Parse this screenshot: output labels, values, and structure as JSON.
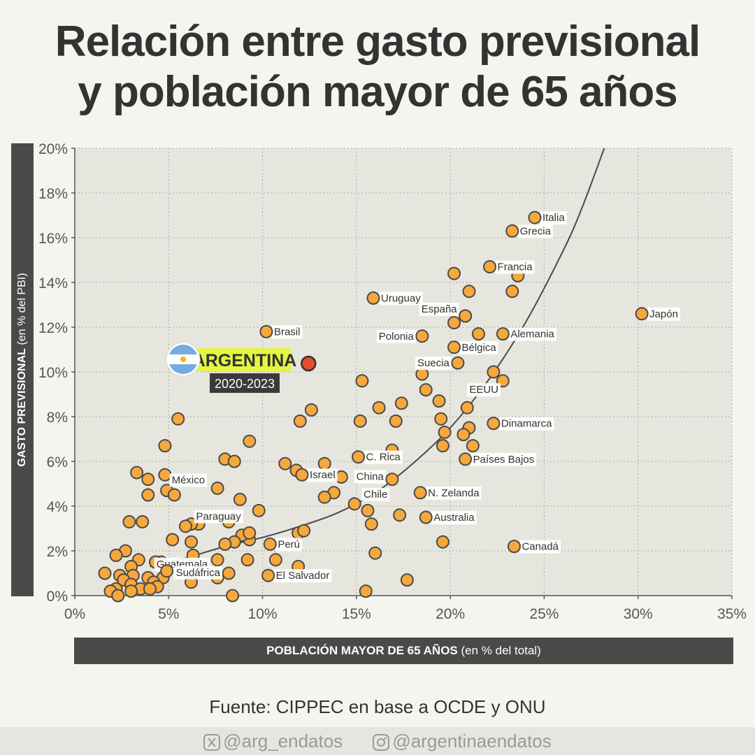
{
  "title": {
    "line1": "Relación entre gasto previsional",
    "line2": "y población mayor de 65 años"
  },
  "axis": {
    "y_label_bold": "GASTO PREVISIONAL",
    "y_label_rest": " (en % del PBI)",
    "x_label_bold": "POBLACIÓN MAYOR DE 65 AÑOS",
    "x_label_rest": " (en % del total)"
  },
  "source": "Fuente: CIPPEC en base a OCDE y ONU",
  "footer": {
    "twitter": "@arg_endatos",
    "instagram": "@argentinaendatos",
    "twitter_icon": "x-icon",
    "instagram_icon": "instagram-icon"
  },
  "highlight": {
    "name": "ARGENTINA",
    "period": "2020-2023",
    "flag_icon": "argentina-flag-icon"
  },
  "chart_data": {
    "type": "scatter",
    "xlim": [
      0,
      35
    ],
    "ylim": [
      0,
      20
    ],
    "x_ticks": [
      0,
      5,
      10,
      15,
      20,
      25,
      30,
      35
    ],
    "y_ticks": [
      0,
      2,
      4,
      6,
      8,
      10,
      12,
      14,
      16,
      18,
      20
    ],
    "x_tick_labels": [
      "0%",
      "5%",
      "10%",
      "15%",
      "20%",
      "25%",
      "30%",
      "35%"
    ],
    "y_tick_labels": [
      "0%",
      "2%",
      "4%",
      "6%",
      "8%",
      "10%",
      "12%",
      "14%",
      "16%",
      "18%",
      "20%"
    ],
    "grid": true,
    "colors": {
      "point": "#f6a83c",
      "point_stroke": "#4a4a4a",
      "highlight": "#e84a2a",
      "highlight_bg": "#e4f542",
      "trend": "#4a4a4a"
    },
    "trendline": {
      "x": [
        4,
        6,
        8,
        10,
        12,
        14,
        16,
        18,
        20,
        22,
        24,
        26,
        27,
        28.2
      ],
      "y": [
        1.3,
        1.7,
        2.2,
        2.6,
        3.1,
        3.7,
        4.6,
        5.9,
        7.5,
        9.6,
        12.2,
        15.4,
        17.3,
        20
      ]
    },
    "highlight_point": {
      "x": 12.0,
      "y": 10.5
    },
    "labeled_points": [
      {
        "name": "Italia",
        "x": 24.5,
        "y": 16.9
      },
      {
        "name": "Grecia",
        "x": 23.3,
        "y": 16.3
      },
      {
        "name": "Francia",
        "x": 22.1,
        "y": 14.7
      },
      {
        "name": "Uruguay",
        "x": 15.9,
        "y": 13.3
      },
      {
        "name": "España",
        "x": 20.8,
        "y": 12.5
      },
      {
        "name": "Japón",
        "x": 30.2,
        "y": 12.6
      },
      {
        "name": "Brasil",
        "x": 10.2,
        "y": 11.8
      },
      {
        "name": "Polonia",
        "x": 18.5,
        "y": 11.6
      },
      {
        "name": "Alemania",
        "x": 22.8,
        "y": 11.7
      },
      {
        "name": "Bélgica",
        "x": 20.2,
        "y": 11.1
      },
      {
        "name": "Suecia",
        "x": 20.4,
        "y": 10.4
      },
      {
        "name": "EEUU",
        "x": 20.9,
        "y": 8.4
      },
      {
        "name": "Dinamarca",
        "x": 22.3,
        "y": 7.7
      },
      {
        "name": "C. Rica",
        "x": 15.1,
        "y": 6.2
      },
      {
        "name": "Países Bajos",
        "x": 20.8,
        "y": 6.1
      },
      {
        "name": "México",
        "x": 7.6,
        "y": 4.8
      },
      {
        "name": "Israel",
        "x": 12.1,
        "y": 5.4
      },
      {
        "name": "China",
        "x": 16.9,
        "y": 5.2
      },
      {
        "name": "N. Zelanda",
        "x": 18.4,
        "y": 4.6
      },
      {
        "name": "Chile",
        "x": 14.9,
        "y": 4.1
      },
      {
        "name": "Australia",
        "x": 18.7,
        "y": 3.5
      },
      {
        "name": "Paraguay",
        "x": 9.3,
        "y": 2.8
      },
      {
        "name": "Perú",
        "x": 10.4,
        "y": 2.3
      },
      {
        "name": "Canadá",
        "x": 23.4,
        "y": 2.2
      },
      {
        "name": "Guatemala",
        "x": 7.6,
        "y": 1.6
      },
      {
        "name": "Sudáfrica",
        "x": 4.9,
        "y": 1.1
      },
      {
        "name": "El Salvador",
        "x": 10.3,
        "y": 0.9
      }
    ],
    "points": [
      {
        "x": 20.2,
        "y": 14.4
      },
      {
        "x": 21.0,
        "y": 13.6
      },
      {
        "x": 23.3,
        "y": 13.6
      },
      {
        "x": 23.6,
        "y": 14.3
      },
      {
        "x": 20.8,
        "y": 12.5
      },
      {
        "x": 20.2,
        "y": 12.2
      },
      {
        "x": 21.5,
        "y": 11.7
      },
      {
        "x": 22.3,
        "y": 10.0
      },
      {
        "x": 22.8,
        "y": 9.6
      },
      {
        "x": 18.5,
        "y": 9.9
      },
      {
        "x": 18.7,
        "y": 9.2
      },
      {
        "x": 15.3,
        "y": 9.6
      },
      {
        "x": 19.4,
        "y": 8.7
      },
      {
        "x": 17.4,
        "y": 8.6
      },
      {
        "x": 16.2,
        "y": 8.4
      },
      {
        "x": 12.6,
        "y": 8.3
      },
      {
        "x": 12.0,
        "y": 7.8
      },
      {
        "x": 15.2,
        "y": 7.8
      },
      {
        "x": 17.1,
        "y": 7.8
      },
      {
        "x": 19.5,
        "y": 7.9
      },
      {
        "x": 21.0,
        "y": 7.5
      },
      {
        "x": 19.7,
        "y": 7.3
      },
      {
        "x": 20.7,
        "y": 7.2
      },
      {
        "x": 21.2,
        "y": 6.7
      },
      {
        "x": 19.6,
        "y": 6.7
      },
      {
        "x": 16.9,
        "y": 6.5
      },
      {
        "x": 5.5,
        "y": 7.9
      },
      {
        "x": 4.8,
        "y": 6.7
      },
      {
        "x": 9.3,
        "y": 6.9
      },
      {
        "x": 8.0,
        "y": 6.1
      },
      {
        "x": 8.5,
        "y": 6.0
      },
      {
        "x": 11.2,
        "y": 5.9
      },
      {
        "x": 13.3,
        "y": 5.9
      },
      {
        "x": 11.8,
        "y": 5.6
      },
      {
        "x": 14.2,
        "y": 5.3
      },
      {
        "x": 13.8,
        "y": 4.6
      },
      {
        "x": 13.3,
        "y": 4.4
      },
      {
        "x": 3.3,
        "y": 5.5
      },
      {
        "x": 4.8,
        "y": 5.4
      },
      {
        "x": 3.9,
        "y": 5.2
      },
      {
        "x": 4.9,
        "y": 4.7
      },
      {
        "x": 5.3,
        "y": 4.5
      },
      {
        "x": 3.9,
        "y": 4.5
      },
      {
        "x": 8.8,
        "y": 4.3
      },
      {
        "x": 9.8,
        "y": 3.8
      },
      {
        "x": 15.6,
        "y": 3.8
      },
      {
        "x": 15.8,
        "y": 3.2
      },
      {
        "x": 17.3,
        "y": 3.6
      },
      {
        "x": 2.9,
        "y": 3.3
      },
      {
        "x": 3.6,
        "y": 3.3
      },
      {
        "x": 8.2,
        "y": 3.3
      },
      {
        "x": 6.6,
        "y": 3.2
      },
      {
        "x": 6.2,
        "y": 3.2
      },
      {
        "x": 5.9,
        "y": 3.1
      },
      {
        "x": 11.9,
        "y": 2.8
      },
      {
        "x": 12.2,
        "y": 2.9
      },
      {
        "x": 9.3,
        "y": 2.5
      },
      {
        "x": 8.9,
        "y": 2.7
      },
      {
        "x": 8.5,
        "y": 2.4
      },
      {
        "x": 8.0,
        "y": 2.3
      },
      {
        "x": 5.2,
        "y": 2.5
      },
      {
        "x": 6.2,
        "y": 2.4
      },
      {
        "x": 19.6,
        "y": 2.4
      },
      {
        "x": 2.7,
        "y": 2.0
      },
      {
        "x": 2.2,
        "y": 1.8
      },
      {
        "x": 3.4,
        "y": 1.6
      },
      {
        "x": 4.6,
        "y": 1.5
      },
      {
        "x": 4.3,
        "y": 1.5
      },
      {
        "x": 6.3,
        "y": 1.8
      },
      {
        "x": 9.2,
        "y": 1.6
      },
      {
        "x": 10.7,
        "y": 1.6
      },
      {
        "x": 11.9,
        "y": 1.3
      },
      {
        "x": 16.0,
        "y": 1.9
      },
      {
        "x": 3.0,
        "y": 1.3
      },
      {
        "x": 1.6,
        "y": 1.0
      },
      {
        "x": 2.4,
        "y": 0.9
      },
      {
        "x": 3.1,
        "y": 0.9
      },
      {
        "x": 3.9,
        "y": 0.8
      },
      {
        "x": 4.7,
        "y": 0.8
      },
      {
        "x": 2.6,
        "y": 0.7
      },
      {
        "x": 4.2,
        "y": 0.6
      },
      {
        "x": 3.0,
        "y": 0.5
      },
      {
        "x": 4.4,
        "y": 0.4
      },
      {
        "x": 2.2,
        "y": 0.3
      },
      {
        "x": 3.5,
        "y": 0.3
      },
      {
        "x": 4.0,
        "y": 0.3
      },
      {
        "x": 1.9,
        "y": 0.2
      },
      {
        "x": 3.0,
        "y": 0.2
      },
      {
        "x": 6.2,
        "y": 0.6
      },
      {
        "x": 7.6,
        "y": 0.8
      },
      {
        "x": 8.2,
        "y": 1.0
      },
      {
        "x": 2.3,
        "y": 0.0
      },
      {
        "x": 8.4,
        "y": 0.0
      },
      {
        "x": 15.5,
        "y": 0.2
      },
      {
        "x": 17.7,
        "y": 0.7
      }
    ]
  }
}
